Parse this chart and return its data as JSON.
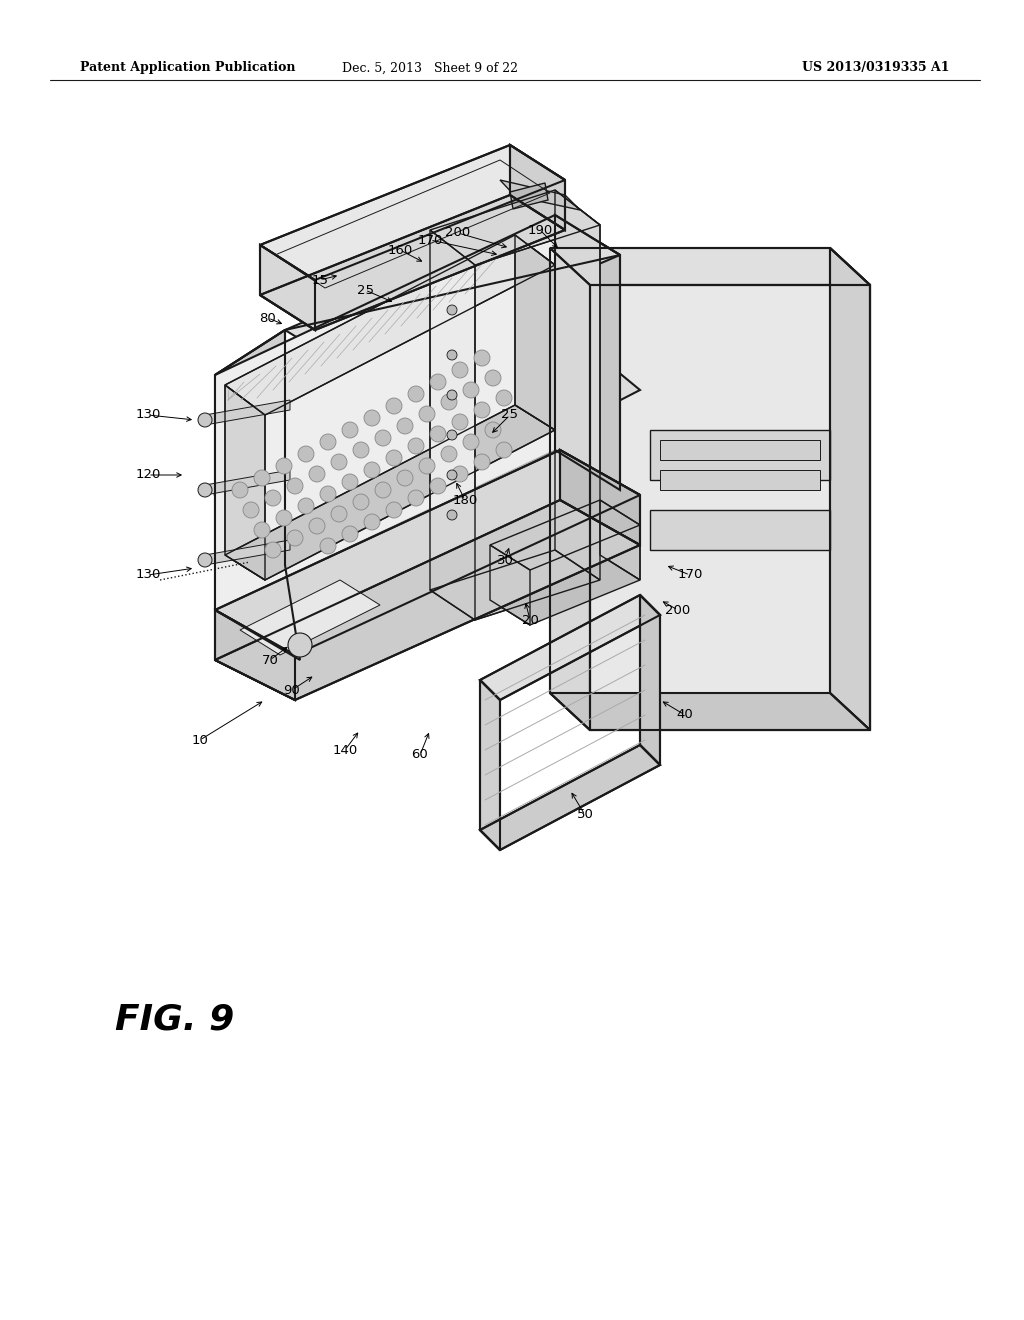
{
  "background_color": "#ffffff",
  "header_left": "Patent Application Publication",
  "header_center": "Dec. 5, 2013   Sheet 9 of 22",
  "header_right": "US 2013/0319335 A1",
  "figure_label": "FIG. 9",
  "line_color": "#1a1a1a",
  "light_gray": "#cccccc",
  "mid_gray": "#999999",
  "label_fontsize": 9.5,
  "header_fontsize": 9,
  "fig_label_fontsize": 26
}
